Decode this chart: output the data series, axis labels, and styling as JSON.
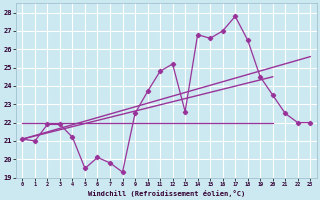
{
  "xlabel": "Windchill (Refroidissement éolien,°C)",
  "background_color": "#cce8f0",
  "grid_color": "#ffffff",
  "line_color": "#993399",
  "xlim": [
    -0.5,
    23.5
  ],
  "ylim": [
    19,
    28.5
  ],
  "yticks": [
    19,
    20,
    21,
    22,
    23,
    24,
    25,
    26,
    27,
    28
  ],
  "xticks": [
    0,
    1,
    2,
    3,
    4,
    5,
    6,
    7,
    8,
    9,
    10,
    11,
    12,
    13,
    14,
    15,
    16,
    17,
    18,
    19,
    20,
    21,
    22,
    23
  ],
  "series1_x": [
    0,
    1,
    2,
    3,
    4,
    5,
    6,
    7,
    8,
    9,
    10,
    11,
    12,
    13,
    14,
    15,
    16,
    17,
    18,
    19,
    20,
    21,
    22,
    23
  ],
  "series1_y": [
    21.1,
    21.0,
    21.9,
    21.9,
    21.2,
    19.5,
    20.1,
    19.8,
    19.3,
    22.5,
    23.7,
    24.8,
    25.2,
    22.6,
    26.8,
    26.6,
    27.0,
    27.8,
    26.5,
    24.5,
    23.5,
    22.5,
    22.0,
    22.0
  ],
  "series2_x": [
    0,
    23
  ],
  "series2_y": [
    21.1,
    25.6
  ],
  "series3_x": [
    0,
    20
  ],
  "series3_y": [
    21.1,
    24.5
  ],
  "series4_x": [
    0,
    20
  ],
  "series4_y": [
    22.0,
    22.0
  ],
  "flat_xend": 20
}
